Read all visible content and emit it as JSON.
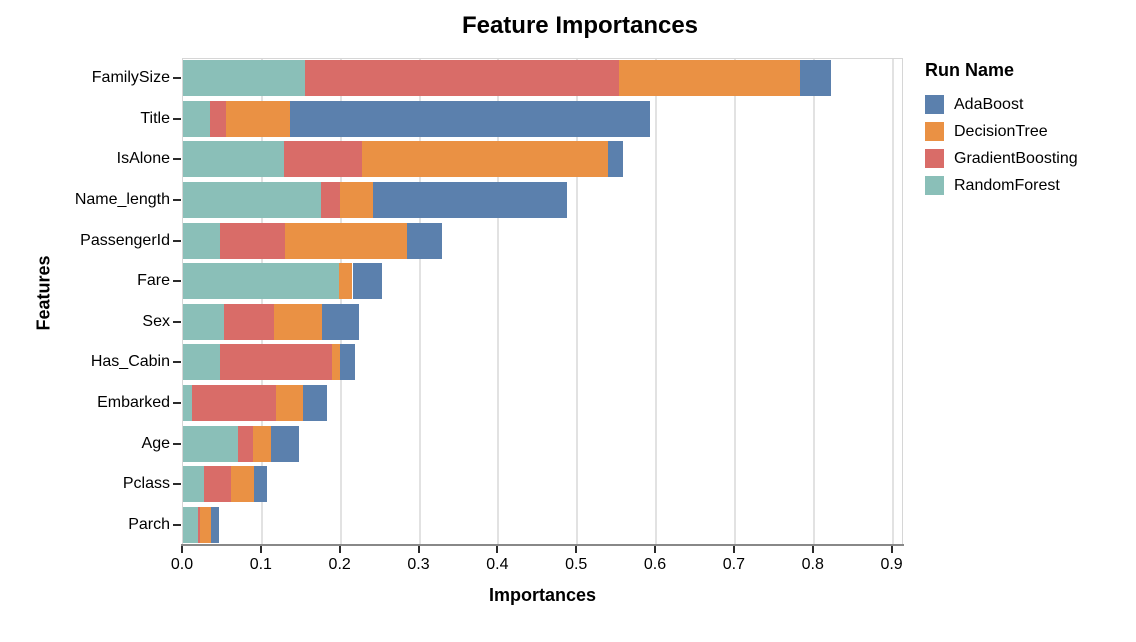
{
  "title": "Feature Importances",
  "legend": {
    "title": "Run Name",
    "items": [
      {
        "label": "AdaBoost",
        "color": "#5b80ad"
      },
      {
        "label": "DecisionTree",
        "color": "#ea9144"
      },
      {
        "label": "GradientBoosting",
        "color": "#d96c68"
      },
      {
        "label": "RandomForest",
        "color": "#8abfb8"
      }
    ]
  },
  "chart_data": {
    "type": "bar",
    "orientation": "horizontal",
    "stacked": true,
    "title": "Feature Importances",
    "xlabel": "Importances",
    "ylabel": "Features",
    "xlim": [
      0,
      0.9145
    ],
    "x_ticks": [
      0.0,
      0.1,
      0.2,
      0.3,
      0.4,
      0.5,
      0.6,
      0.7,
      0.8,
      0.9
    ],
    "grid": true,
    "legend_position": "right",
    "categories": [
      "FamilySize",
      "Title",
      "IsAlone",
      "Name_length",
      "PassengerId",
      "Fare",
      "Sex",
      "Has_Cabin",
      "Embarked",
      "Age",
      "Pclass",
      "Parch"
    ],
    "stack_order": [
      "RandomForest",
      "GradientBoosting",
      "DecisionTree",
      "AdaBoost"
    ],
    "series": [
      {
        "name": "AdaBoost",
        "color": "#5b80ad",
        "values": [
          0.04,
          0.456,
          0.019,
          0.246,
          0.045,
          0.037,
          0.047,
          0.019,
          0.031,
          0.036,
          0.016,
          0.01
        ]
      },
      {
        "name": "DecisionTree",
        "color": "#ea9144",
        "values": [
          0.229,
          0.081,
          0.312,
          0.042,
          0.155,
          0.017,
          0.06,
          0.01,
          0.034,
          0.022,
          0.029,
          0.015
        ]
      },
      {
        "name": "GradientBoosting",
        "color": "#d96c68",
        "values": [
          0.398,
          0.021,
          0.099,
          0.024,
          0.082,
          0.0,
          0.064,
          0.142,
          0.107,
          0.019,
          0.034,
          0.002
        ]
      },
      {
        "name": "RandomForest",
        "color": "#8abfb8",
        "values": [
          0.155,
          0.034,
          0.128,
          0.175,
          0.047,
          0.198,
          0.052,
          0.047,
          0.011,
          0.07,
          0.027,
          0.019
        ]
      }
    ]
  }
}
